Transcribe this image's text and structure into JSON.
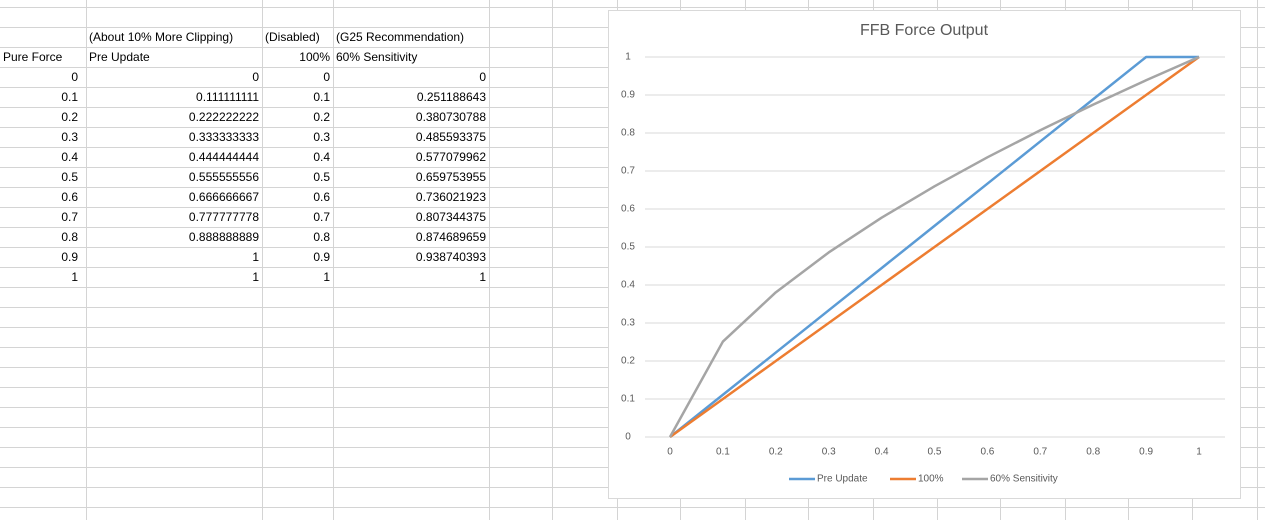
{
  "table": {
    "notes": [
      "(About 10% More Clipping)",
      "(Disabled)",
      "(G25 Recommendation)"
    ],
    "columns": [
      "Pure Force",
      "Pre Update",
      "100%",
      "60% Sensitivity"
    ],
    "rows": [
      [
        0,
        0,
        0,
        0
      ],
      [
        0.1,
        0.111111111,
        0.1,
        0.251188643
      ],
      [
        0.2,
        0.222222222,
        0.2,
        0.380730788
      ],
      [
        0.3,
        0.333333333,
        0.3,
        0.485593375
      ],
      [
        0.4,
        0.444444444,
        0.4,
        0.577079962
      ],
      [
        0.5,
        0.555555556,
        0.5,
        0.659753955
      ],
      [
        0.6,
        0.666666667,
        0.6,
        0.736021923
      ],
      [
        0.7,
        0.777777778,
        0.7,
        0.807344375
      ],
      [
        0.8,
        0.888888889,
        0.8,
        0.874689659
      ],
      [
        0.9,
        1,
        0.9,
        0.938740393
      ],
      [
        1,
        1,
        1,
        1
      ]
    ]
  },
  "chart_data": {
    "type": "line",
    "title": "FFB Force Output",
    "x": [
      0,
      0.1,
      0.2,
      0.3,
      0.4,
      0.5,
      0.6,
      0.7,
      0.8,
      0.9,
      1
    ],
    "series": [
      {
        "name": "Pre Update",
        "color": "#5b9bd5",
        "values": [
          0,
          0.111111111,
          0.222222222,
          0.333333333,
          0.444444444,
          0.555555556,
          0.666666667,
          0.777777778,
          0.888888889,
          1,
          1
        ]
      },
      {
        "name": "100%",
        "color": "#ed7d31",
        "values": [
          0,
          0.1,
          0.2,
          0.3,
          0.4,
          0.5,
          0.6,
          0.7,
          0.8,
          0.9,
          1
        ]
      },
      {
        "name": "60% Sensitivity",
        "color": "#a5a5a5",
        "values": [
          0,
          0.251188643,
          0.380730788,
          0.485593375,
          0.577079962,
          0.659753955,
          0.736021923,
          0.807344375,
          0.874689659,
          0.938740393,
          1
        ]
      }
    ],
    "xlim": [
      0,
      1
    ],
    "ylim": [
      0,
      1
    ],
    "xticks": [
      0,
      0.1,
      0.2,
      0.3,
      0.4,
      0.5,
      0.6,
      0.7,
      0.8,
      0.9,
      1
    ],
    "yticks": [
      0,
      0.1,
      0.2,
      0.3,
      0.4,
      0.5,
      0.6,
      0.7,
      0.8,
      0.9,
      1
    ],
    "grid": true,
    "legend": "bottom"
  }
}
